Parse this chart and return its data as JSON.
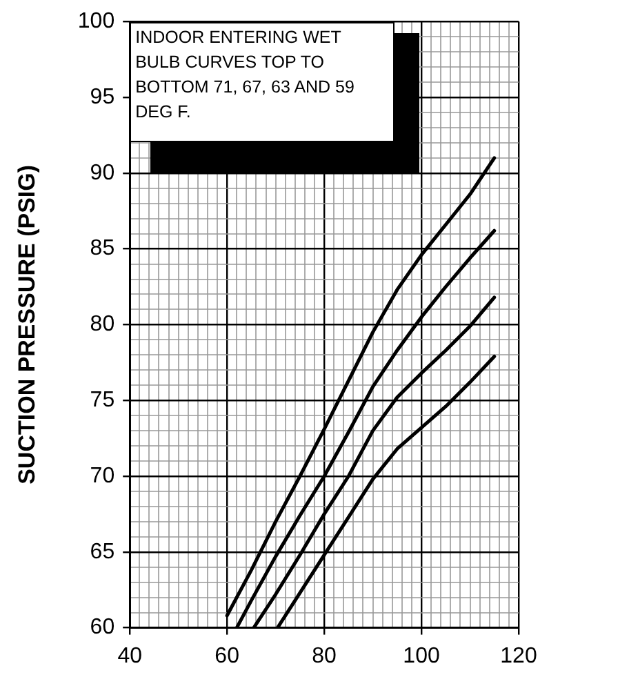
{
  "chart_data": {
    "type": "line",
    "ylabel": "SUCTION PRESSURE (PSIG)",
    "annotations": [
      "INDOOR ENTERING WET BULB CURVES TOP TO BOTTOM 71, 67, 63 AND 59 DEG F."
    ],
    "series": [
      {
        "color": "#000000",
        "x": [
          60,
          65,
          70,
          75,
          80,
          85,
          90,
          95,
          100,
          105,
          110,
          115
        ],
        "values": [
          60.8,
          63.8,
          67,
          70,
          73.1,
          76.3,
          79.5,
          82.3,
          84.6,
          86.6,
          88.6,
          91
        ]
      },
      {
        "color": "#000000",
        "x": [
          62,
          65,
          70,
          75,
          80,
          85,
          90,
          95,
          100,
          105,
          110,
          115
        ],
        "values": [
          60,
          61.8,
          64.7,
          67.4,
          70,
          72.9,
          75.9,
          78.3,
          80.5,
          82.5,
          84.4,
          86.2
        ]
      },
      {
        "color": "#000000",
        "x": [
          65.5,
          70,
          75,
          80,
          85,
          90,
          95,
          100,
          105,
          110,
          115
        ],
        "values": [
          60,
          62.2,
          64.8,
          67.5,
          70,
          73,
          75.2,
          76.8,
          78.3,
          79.9,
          81.8
        ]
      },
      {
        "color": "#000000",
        "x": [
          70.4,
          75,
          80,
          85,
          90,
          95,
          100,
          105,
          110,
          115
        ],
        "values": [
          60,
          62.3,
          64.8,
          67.3,
          69.8,
          71.8,
          73.2,
          74.6,
          76.2,
          77.9
        ]
      }
    ],
    "xlim": [
      40,
      120
    ],
    "ylim": [
      60,
      100
    ],
    "xticks": [
      40,
      {
        "value": 42,
        "label": null
      },
      {
        "value": 44,
        "label": null
      },
      {
        "value": 46,
        "label": null
      },
      {
        "value": 48,
        "label": null
      },
      {
        "value": 50,
        "label": null
      },
      {
        "value": 52,
        "label": null
      },
      {
        "value": 54,
        "label": null
      },
      {
        "value": 56,
        "label": null
      },
      {
        "value": 58,
        "label": null
      },
      60,
      {
        "value": 62,
        "label": null
      },
      {
        "value": 64,
        "label": null
      },
      {
        "value": 66,
        "label": null
      },
      {
        "value": 68,
        "label": null
      },
      {
        "value": 70,
        "label": null
      },
      {
        "value": 72,
        "label": null
      },
      {
        "value": 74,
        "label": null
      },
      {
        "value": 76,
        "label": null
      },
      {
        "value": 78,
        "label": null
      },
      80,
      {
        "value": 82,
        "label": null
      },
      {
        "value": 84,
        "label": null
      },
      {
        "value": 86,
        "label": null
      },
      {
        "value": 88,
        "label": null
      },
      {
        "value": 90,
        "label": null
      },
      {
        "value": 92,
        "label": null
      },
      {
        "value": 94,
        "label": null
      },
      {
        "value": 96,
        "label": null
      },
      {
        "value": 98,
        "label": null
      },
      100,
      {
        "value": 102,
        "label": null
      },
      {
        "value": 104,
        "label": null
      },
      {
        "value": 106,
        "label": null
      },
      {
        "value": 108,
        "label": null
      },
      {
        "value": 110,
        "label": null
      },
      {
        "value": 112,
        "label": null
      },
      {
        "value": 114,
        "label": null
      },
      {
        "value": 116,
        "label": null
      },
      {
        "value": 118,
        "label": null
      },
      120
    ],
    "yticks": [
      60,
      {
        "value": 61,
        "label": null
      },
      {
        "value": 62,
        "label": null
      },
      {
        "value": 63,
        "label": null
      },
      {
        "value": 64,
        "label": null
      },
      65,
      {
        "value": 66,
        "label": null
      },
      {
        "value": 67,
        "label": null
      },
      {
        "value": 68,
        "label": null
      },
      {
        "value": 69,
        "label": null
      },
      70,
      {
        "value": 71,
        "label": null
      },
      {
        "value": 72,
        "label": null
      },
      {
        "value": 73,
        "label": null
      },
      {
        "value": 74,
        "label": null
      },
      75,
      {
        "value": 76,
        "label": null
      },
      {
        "value": 77,
        "label": null
      },
      {
        "value": 78,
        "label": null
      },
      {
        "value": 79,
        "label": null
      },
      80,
      {
        "value": 81,
        "label": null
      },
      {
        "value": 82,
        "label": null
      },
      {
        "value": 83,
        "label": null
      },
      {
        "value": 84,
        "label": null
      },
      85,
      {
        "value": 86,
        "label": null
      },
      {
        "value": 87,
        "label": null
      },
      {
        "value": 88,
        "label": null
      },
      {
        "value": 89,
        "label": null
      },
      90,
      {
        "value": 91,
        "label": null
      },
      {
        "value": 92,
        "label": null
      },
      {
        "value": 93,
        "label": null
      },
      {
        "value": 94,
        "label": null
      },
      95,
      {
        "value": 96,
        "label": null
      },
      {
        "value": 97,
        "label": null
      },
      {
        "value": 98,
        "label": null
      },
      {
        "value": 99,
        "label": null
      },
      100
    ],
    "grid": true,
    "legend": false,
    "marker": "none",
    "line_style": "solid"
  }
}
